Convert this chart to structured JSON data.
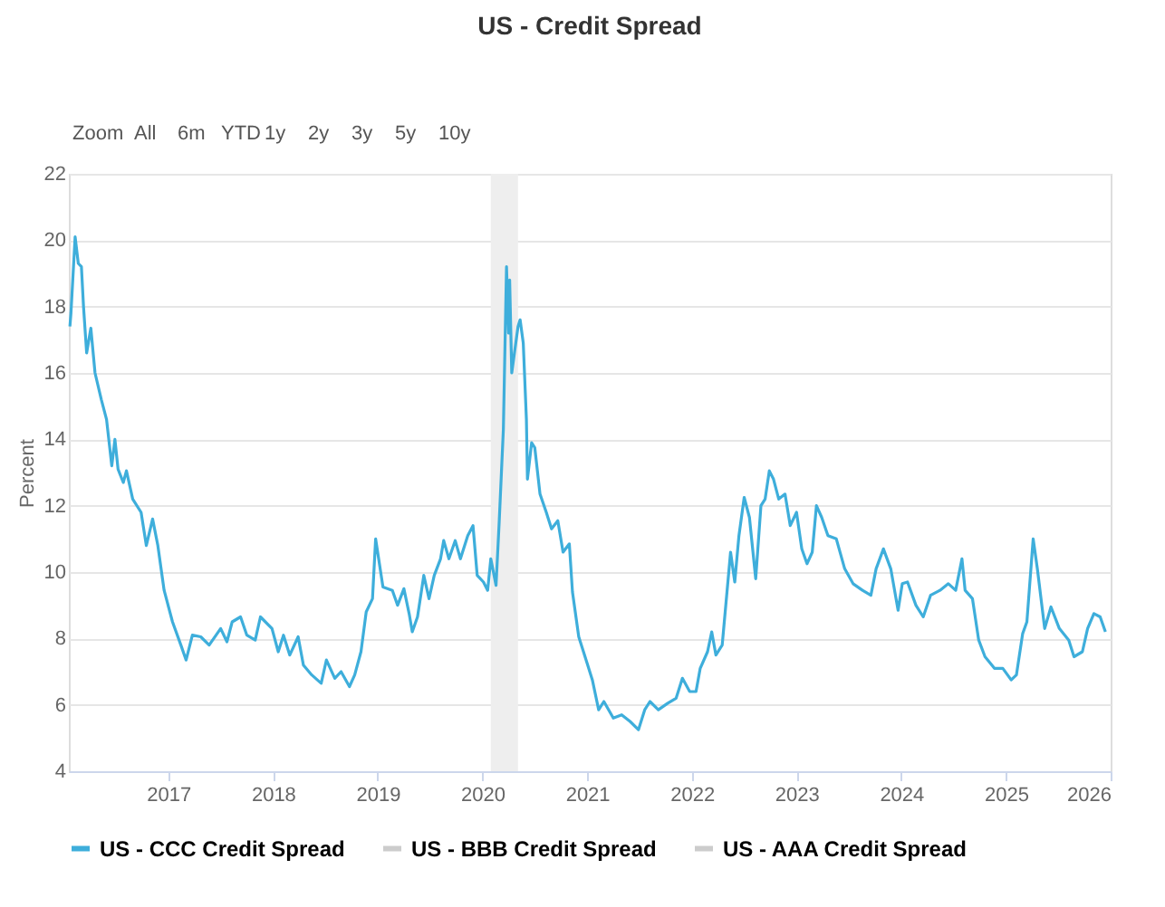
{
  "chart_data": {
    "type": "line",
    "title": "US - Credit Spread",
    "ylabel": "Percent",
    "annotations": [
      "Zoom",
      "All",
      "6m",
      "YTD",
      "1y",
      "2y",
      "3y",
      "5y",
      "10y"
    ],
    "xlim": [
      2016.05,
      2026.0
    ],
    "xticks": [
      2017,
      2018,
      2019,
      2020,
      2021,
      2022,
      2023,
      2024,
      2025,
      2026
    ],
    "ylim": [
      4,
      22
    ],
    "yticks": [
      4,
      6,
      8,
      10,
      12,
      14,
      16,
      18,
      20,
      22
    ],
    "grid": "y",
    "legend": "bottom",
    "line_style": "solid",
    "marker": "none",
    "bands": [
      {
        "axis": "x",
        "from": 2020.08,
        "to": 2020.34,
        "color": "#eeeeee"
      }
    ],
    "series": [
      {
        "name": "US - CCC Credit Spread",
        "color": "#3eaedb",
        "x": [
          2016.06,
          2016.07,
          2016.11,
          2016.14,
          2016.17,
          2016.19,
          2016.22,
          2016.26,
          2016.3,
          2016.36,
          2016.41,
          2016.46,
          2016.49,
          2016.52,
          2016.57,
          2016.6,
          2016.66,
          2016.74,
          2016.79,
          2016.85,
          2016.9,
          2016.96,
          2017.04,
          2017.12,
          2017.17,
          2017.23,
          2017.31,
          2017.39,
          2017.5,
          2017.56,
          2017.61,
          2017.69,
          2017.75,
          2017.83,
          2017.88,
          2017.99,
          2018.05,
          2018.1,
          2018.16,
          2018.24,
          2018.29,
          2018.37,
          2018.46,
          2018.51,
          2018.59,
          2018.65,
          2018.73,
          2018.78,
          2018.84,
          2018.89,
          2018.95,
          2018.98,
          2019.05,
          2019.14,
          2019.19,
          2019.25,
          2019.3,
          2019.33,
          2019.38,
          2019.44,
          2019.49,
          2019.54,
          2019.6,
          2019.63,
          2019.68,
          2019.74,
          2019.79,
          2019.86,
          2019.91,
          2019.95,
          2020.01,
          2020.05,
          2020.08,
          2020.13,
          2020.16,
          2020.2,
          2020.23,
          2020.25,
          2020.26,
          2020.28,
          2020.31,
          2020.34,
          2020.36,
          2020.39,
          2020.42,
          2020.43,
          2020.47,
          2020.5,
          2020.55,
          2020.61,
          2020.66,
          2020.72,
          2020.77,
          2020.83,
          2020.86,
          2020.92,
          2021.0,
          2021.05,
          2021.11,
          2021.16,
          2021.25,
          2021.33,
          2021.41,
          2021.49,
          2021.55,
          2021.6,
          2021.68,
          2021.77,
          2021.85,
          2021.91,
          2021.98,
          2022.04,
          2022.08,
          2022.15,
          2022.19,
          2022.23,
          2022.29,
          2022.34,
          2022.37,
          2022.41,
          2022.45,
          2022.5,
          2022.55,
          2022.61,
          2022.66,
          2022.7,
          2022.74,
          2022.78,
          2022.83,
          2022.89,
          2022.94,
          2023.0,
          2023.05,
          2023.1,
          2023.15,
          2023.19,
          2023.24,
          2023.3,
          2023.38,
          2023.46,
          2023.54,
          2023.63,
          2023.71,
          2023.76,
          2023.83,
          2023.9,
          2023.97,
          2024.01,
          2024.06,
          2024.14,
          2024.21,
          2024.28,
          2024.37,
          2024.45,
          2024.52,
          2024.58,
          2024.61,
          2024.68,
          2024.74,
          2024.8,
          2024.89,
          2024.97,
          2025.05,
          2025.1,
          2025.16,
          2025.2,
          2025.26,
          2025.3,
          2025.37,
          2025.43,
          2025.51,
          2025.6,
          2025.65,
          2025.73,
          2025.78,
          2025.84,
          2025.9,
          2025.95
        ],
        "values": [
          17.4,
          17.8,
          20.1,
          19.3,
          19.2,
          18.0,
          16.6,
          17.35,
          16.0,
          15.2,
          14.6,
          13.2,
          14.0,
          13.1,
          12.7,
          13.05,
          12.2,
          11.8,
          10.8,
          11.6,
          10.8,
          9.45,
          8.5,
          7.8,
          7.35,
          8.1,
          8.05,
          7.8,
          8.3,
          7.9,
          8.5,
          8.65,
          8.1,
          7.95,
          8.65,
          8.3,
          7.6,
          8.1,
          7.5,
          8.05,
          7.2,
          6.9,
          6.65,
          7.35,
          6.8,
          7.0,
          6.55,
          6.9,
          7.6,
          8.8,
          9.2,
          11.0,
          9.55,
          9.45,
          9.0,
          9.5,
          8.75,
          8.2,
          8.65,
          9.9,
          9.2,
          9.9,
          10.4,
          10.95,
          10.4,
          10.95,
          10.4,
          11.1,
          11.4,
          9.9,
          9.7,
          9.45,
          10.4,
          9.6,
          11.5,
          14.3,
          19.2,
          17.2,
          18.8,
          16.0,
          16.7,
          17.4,
          17.6,
          16.9,
          14.6,
          12.8,
          13.9,
          13.75,
          12.35,
          11.8,
          11.3,
          11.55,
          10.6,
          10.85,
          9.4,
          8.05,
          7.25,
          6.75,
          5.85,
          6.1,
          5.6,
          5.7,
          5.5,
          5.25,
          5.85,
          6.1,
          5.85,
          6.05,
          6.2,
          6.8,
          6.4,
          6.4,
          7.1,
          7.6,
          8.2,
          7.5,
          7.8,
          9.55,
          10.6,
          9.7,
          11.1,
          12.25,
          11.65,
          9.8,
          12.0,
          12.2,
          13.05,
          12.8,
          12.2,
          12.35,
          11.4,
          11.8,
          10.7,
          10.25,
          10.6,
          12.0,
          11.65,
          11.1,
          11.0,
          10.1,
          9.65,
          9.45,
          9.3,
          10.1,
          10.7,
          10.1,
          8.85,
          9.65,
          9.7,
          9.0,
          8.65,
          9.3,
          9.45,
          9.65,
          9.45,
          10.4,
          9.45,
          9.2,
          7.95,
          7.45,
          7.1,
          7.1,
          6.75,
          6.9,
          8.15,
          8.5,
          11.0,
          10.1,
          8.3,
          8.95,
          8.3,
          7.95,
          7.45,
          7.6,
          8.3,
          8.75,
          8.65,
          8.2
        ]
      },
      {
        "name": "US - BBB Credit Spread",
        "color": "#cccccc"
      },
      {
        "name": "US - AAA Credit Spread",
        "color": "#cccccc"
      }
    ]
  }
}
